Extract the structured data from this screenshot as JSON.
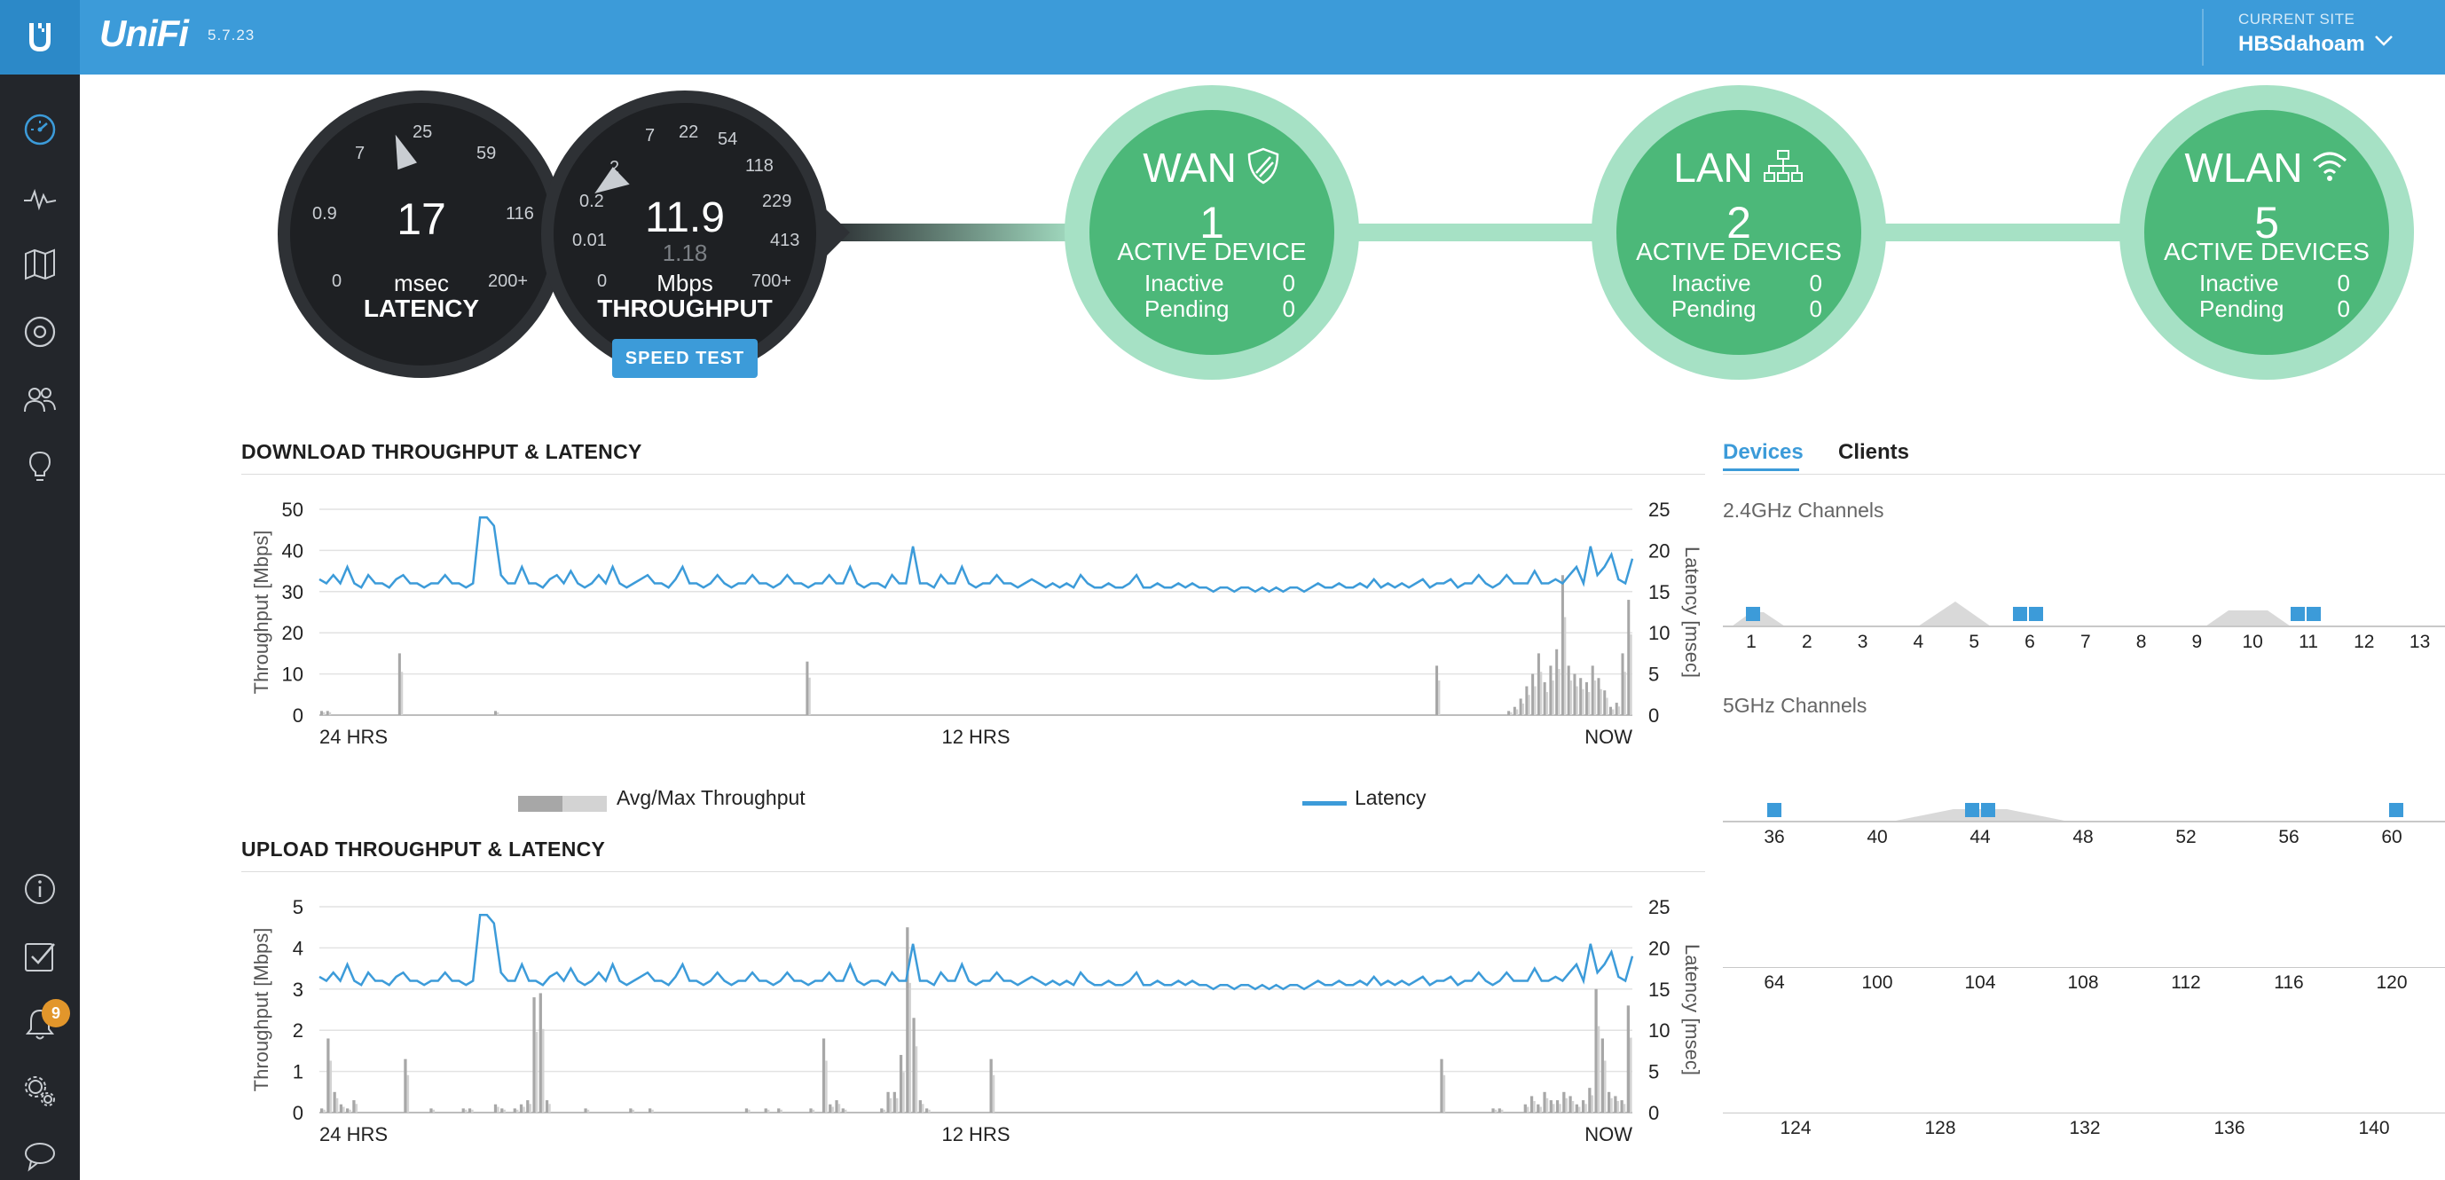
{
  "header": {
    "brand": "UniFi",
    "version": "5.7.23",
    "site_caption": "CURRENT SITE",
    "site_name": "HBSdahoam"
  },
  "sidebar": {
    "items": [
      {
        "name": "dashboard-icon",
        "active": true
      },
      {
        "name": "statistics-icon"
      },
      {
        "name": "map-icon"
      },
      {
        "name": "devices-icon"
      },
      {
        "name": "clients-icon"
      },
      {
        "name": "insights-icon"
      }
    ],
    "bottom_items": [
      {
        "name": "info-icon"
      },
      {
        "name": "tasks-icon"
      },
      {
        "name": "alerts-icon",
        "badge": "9"
      },
      {
        "name": "settings-icon"
      },
      {
        "name": "chat-icon"
      }
    ]
  },
  "latency_gauge": {
    "value": "17",
    "unit": "msec",
    "label": "LATENCY",
    "ticks": [
      "0",
      "0.9",
      "7",
      "25",
      "59",
      "116",
      "200+"
    ]
  },
  "throughput_gauge": {
    "value": "11.9",
    "sub_value": "1.18",
    "unit": "Mbps",
    "label": "THROUGHPUT",
    "ticks": [
      "0",
      "0.01",
      "0.2",
      "2",
      "7",
      "22",
      "54",
      "118",
      "229",
      "413",
      "700+"
    ],
    "button": "SPEED TEST"
  },
  "status_nodes": [
    {
      "title": "WAN",
      "count": "1",
      "caption": "ACTIVE DEVICE",
      "inactive_label": "Inactive",
      "inactive": "0",
      "pending_label": "Pending",
      "pending": "0",
      "icon": "shield-icon"
    },
    {
      "title": "LAN",
      "count": "2",
      "caption": "ACTIVE DEVICES",
      "inactive_label": "Inactive",
      "inactive": "0",
      "pending_label": "Pending",
      "pending": "0",
      "icon": "network-icon"
    },
    {
      "title": "WLAN",
      "count": "5",
      "caption": "ACTIVE DEVICES",
      "inactive_label": "Inactive",
      "inactive": "0",
      "pending_label": "Pending",
      "pending": "0",
      "icon": "wifi-icon"
    }
  ],
  "download": {
    "title": "DOWNLOAD THROUGHPUT & LATENCY"
  },
  "upload": {
    "title": "UPLOAD THROUGHPUT & LATENCY"
  },
  "legend": {
    "throughput": "Avg/Max Throughput",
    "latency": "Latency"
  },
  "chart_data": [
    {
      "type": "line",
      "title": "DOWNLOAD THROUGHPUT & LATENCY",
      "ylabel": "Throughput [Mbps]",
      "y2label": "Latency [msec]",
      "xlabels": [
        "24 HRS",
        "12 HRS",
        "NOW"
      ],
      "ylim": [
        0,
        50
      ],
      "y2lim": [
        0,
        25
      ],
      "yticks": [
        "0",
        "10",
        "20",
        "30",
        "40",
        "50"
      ],
      "y2ticks": [
        "0",
        "5",
        "10",
        "15",
        "20",
        "25"
      ],
      "grid": true,
      "series": [
        {
          "name": "Latency",
          "axis": "right",
          "color": "#3c9bd9",
          "values": [
            16.5,
            16,
            17,
            16,
            18,
            16,
            15.5,
            17,
            16,
            16,
            15.5,
            16.5,
            17,
            16,
            16,
            15.5,
            16,
            16,
            17,
            16,
            16,
            15.5,
            16,
            24,
            24,
            23,
            17,
            16,
            16,
            18,
            16,
            16,
            15.5,
            16.5,
            17,
            16,
            17.5,
            16,
            15.5,
            16,
            17,
            16,
            18,
            16,
            15.5,
            16,
            16.5,
            17,
            16,
            16,
            15.5,
            16.5,
            18,
            16,
            16,
            15.5,
            16,
            17,
            16,
            15.5,
            16,
            16,
            17,
            16,
            16,
            15.5,
            16,
            17,
            16,
            16,
            15.5,
            16,
            16,
            17,
            16,
            16,
            18,
            16,
            15.5,
            16,
            16,
            15.5,
            17,
            16,
            16,
            20.5,
            16,
            16,
            15.5,
            17,
            16,
            16,
            18,
            16,
            15.5,
            16,
            16,
            17,
            16,
            16,
            15.5,
            16,
            16.5,
            16,
            15.5,
            16,
            15.5,
            16,
            15.5,
            17,
            16,
            15.5,
            15.5,
            16,
            15.5,
            15.5,
            16,
            17,
            15.5,
            15.5,
            16,
            15.5,
            15.5,
            16,
            15.5,
            16,
            15.5,
            15.5,
            15,
            15.5,
            15.5,
            15,
            15.5,
            15.5,
            15,
            15.5,
            15,
            15.5,
            15,
            15.5,
            15.5,
            15,
            15.5,
            16,
            15.5,
            15.5,
            16,
            15.5,
            15.5,
            16,
            15.5,
            16.5,
            15.5,
            16,
            15.5,
            16,
            15.5,
            16,
            16.5,
            15.5,
            16,
            16,
            16.5,
            15.5,
            16,
            16,
            17,
            16,
            15.5,
            16,
            17,
            16,
            16,
            16,
            17.5,
            16,
            16,
            16.5,
            16,
            17,
            18,
            16,
            20.5,
            17,
            18,
            19.5,
            16.5,
            16,
            19
          ]
        },
        {
          "name": "Avg/Max Throughput",
          "axis": "left",
          "color": "#999999",
          "values": [
            1,
            1,
            0,
            0,
            0,
            0,
            0,
            0,
            0,
            0,
            0,
            0,
            0,
            15,
            0,
            0,
            0,
            0,
            0,
            0,
            0,
            0,
            0,
            0,
            0,
            0,
            0,
            0,
            0,
            1,
            0,
            0,
            0,
            0,
            0,
            0,
            0,
            0,
            0,
            0,
            0,
            0,
            0,
            0,
            0,
            0,
            0,
            0,
            0,
            0,
            0,
            0,
            0,
            0,
            0,
            0,
            0,
            0,
            0,
            0,
            0,
            0,
            0,
            0,
            0,
            0,
            0,
            0,
            0,
            0,
            0,
            0,
            0,
            0,
            0,
            0,
            0,
            0,
            0,
            0,
            0,
            13,
            0,
            0,
            0,
            0,
            0,
            0,
            0,
            0,
            0,
            0,
            0,
            0,
            0,
            0,
            0,
            0,
            0,
            0,
            0,
            0,
            0,
            0,
            0,
            0,
            0,
            0,
            0,
            0,
            0,
            0,
            0,
            0,
            0,
            0,
            0,
            0,
            0,
            0,
            0,
            0,
            0,
            0,
            0,
            0,
            0,
            0,
            0,
            0,
            0,
            0,
            0,
            0,
            0,
            0,
            0,
            0,
            0,
            0,
            0,
            0,
            0,
            0,
            0,
            0,
            0,
            0,
            0,
            0,
            0,
            0,
            0,
            0,
            0,
            0,
            0,
            0,
            0,
            0,
            0,
            0,
            0,
            0,
            0,
            0,
            0,
            0,
            0,
            0,
            0,
            0,
            0,
            0,
            0,
            0,
            0,
            0,
            0,
            0,
            0,
            0,
            0,
            0,
            0,
            0,
            12,
            0,
            0,
            0,
            0,
            0,
            0,
            0,
            0,
            0,
            0,
            0,
            1,
            2,
            4,
            7,
            10,
            15,
            8,
            12,
            16,
            34,
            12,
            10,
            9,
            8,
            12,
            9,
            6,
            2,
            3,
            15,
            28
          ]
        }
      ]
    },
    {
      "type": "line",
      "title": "UPLOAD THROUGHPUT & LATENCY",
      "ylabel": "Throughput [Mbps]",
      "y2label": "Latency [msec]",
      "xlabels": [
        "24 HRS",
        "12 HRS",
        "NOW"
      ],
      "ylim": [
        0,
        5
      ],
      "y2lim": [
        0,
        25
      ],
      "yticks": [
        "0",
        "1",
        "2",
        "3",
        "4",
        "5"
      ],
      "y2ticks": [
        "0",
        "5",
        "10",
        "15",
        "20",
        "25"
      ],
      "grid": true,
      "series": [
        {
          "name": "Latency",
          "axis": "right",
          "color": "#3c9bd9",
          "values": [
            16.5,
            16,
            17,
            16,
            18,
            16,
            15.5,
            17,
            16,
            16,
            15.5,
            16.5,
            17,
            16,
            16,
            15.5,
            16,
            16,
            17,
            16,
            16,
            15.5,
            16,
            24,
            24,
            23,
            17,
            16,
            16,
            18,
            16,
            16,
            15.5,
            16.5,
            17,
            16,
            17.5,
            16,
            15.5,
            16,
            17,
            16,
            18,
            16,
            15.5,
            16,
            16.5,
            17,
            16,
            16,
            15.5,
            16.5,
            18,
            16,
            16,
            15.5,
            16,
            17,
            16,
            15.5,
            16,
            16,
            17,
            16,
            16,
            15.5,
            16,
            17,
            16,
            16,
            15.5,
            16,
            16,
            17,
            16,
            16,
            18,
            16,
            15.5,
            16,
            16,
            15.5,
            17,
            16,
            16,
            20.5,
            16,
            16,
            15.5,
            17,
            16,
            16,
            18,
            16,
            15.5,
            16,
            16,
            17,
            16,
            16,
            15.5,
            16,
            16.5,
            16,
            15.5,
            16,
            15.5,
            16,
            15.5,
            17,
            16,
            15.5,
            15.5,
            16,
            15.5,
            15.5,
            16,
            17,
            15.5,
            15.5,
            16,
            15.5,
            15.5,
            16,
            15.5,
            16,
            15.5,
            15.5,
            15,
            15.5,
            15.5,
            15,
            15.5,
            15.5,
            15,
            15.5,
            15,
            15.5,
            15,
            15.5,
            15.5,
            15,
            15.5,
            16,
            15.5,
            15.5,
            16,
            15.5,
            15.5,
            16,
            15.5,
            16.5,
            15.5,
            16,
            15.5,
            16,
            15.5,
            16,
            16.5,
            15.5,
            16,
            16,
            16.5,
            15.5,
            16,
            16,
            17,
            16,
            15.5,
            16,
            17,
            16,
            16,
            16,
            17.5,
            16,
            16,
            16.5,
            16,
            17,
            18,
            16,
            20.5,
            17,
            18,
            19.5,
            16.5,
            16,
            19
          ]
        },
        {
          "name": "Avg/Max Throughput",
          "axis": "left",
          "color": "#999999",
          "values": [
            0.1,
            1.8,
            0.5,
            0.2,
            0.1,
            0.3,
            0,
            0,
            0,
            0,
            0,
            0,
            0,
            1.3,
            0,
            0,
            0,
            0.1,
            0,
            0,
            0,
            0,
            0.1,
            0.1,
            0,
            0,
            0,
            0.2,
            0.1,
            0,
            0.1,
            0.2,
            0.3,
            2.8,
            2.9,
            0.3,
            0,
            0,
            0,
            0,
            0,
            0.1,
            0,
            0,
            0,
            0,
            0,
            0,
            0.1,
            0,
            0,
            0.1,
            0,
            0,
            0,
            0,
            0,
            0,
            0,
            0,
            0,
            0,
            0,
            0,
            0,
            0,
            0.1,
            0,
            0,
            0.1,
            0,
            0.1,
            0,
            0,
            0,
            0,
            0.1,
            0,
            1.8,
            0.2,
            0.3,
            0.1,
            0,
            0,
            0,
            0,
            0,
            0.1,
            0.5,
            0.5,
            1.4,
            4.5,
            2.3,
            0.3,
            0.1,
            0,
            0,
            0,
            0,
            0,
            0,
            0,
            0,
            0,
            1.3,
            0,
            0,
            0,
            0,
            0,
            0,
            0,
            0,
            0,
            0,
            0,
            0,
            0,
            0,
            0,
            0,
            0,
            0,
            0,
            0,
            0,
            0,
            0,
            0,
            0,
            0,
            0,
            0,
            0,
            0,
            0,
            0,
            0,
            0,
            0,
            0,
            0,
            0,
            0,
            0,
            0,
            0,
            0,
            0,
            0,
            0,
            0,
            0,
            0,
            0,
            0,
            0,
            0,
            0,
            0,
            0,
            0,
            0,
            0,
            0,
            0,
            0,
            0,
            0,
            0,
            0,
            0,
            0,
            0,
            1.3,
            0,
            0,
            0,
            0,
            0,
            0,
            0,
            0.1,
            0.1,
            0,
            0,
            0,
            0.2,
            0.4,
            0.2,
            0.5,
            0.3,
            0.3,
            0.5,
            0.4,
            0.2,
            0.3,
            0.6,
            3.0,
            1.8,
            0.5,
            0.4,
            0.3,
            2.6
          ]
        }
      ]
    }
  ],
  "channels": {
    "tabs": [
      "Devices",
      "Clients"
    ],
    "band_24_title": "2.4GHz Channels",
    "band_24_labels": [
      "1",
      "2",
      "3",
      "4",
      "5",
      "6",
      "7",
      "8",
      "9",
      "10",
      "11",
      "12",
      "13"
    ],
    "band_5_title": "5GHz Channels",
    "band_5_row1": [
      "36",
      "40",
      "44",
      "48",
      "52",
      "56",
      "60"
    ],
    "band_5_row2": [
      "64",
      "100",
      "104",
      "108",
      "112",
      "116",
      "120"
    ],
    "band_5_row3": [
      "124",
      "128",
      "132",
      "136",
      "140"
    ],
    "device_color": "#3c9bd9"
  }
}
